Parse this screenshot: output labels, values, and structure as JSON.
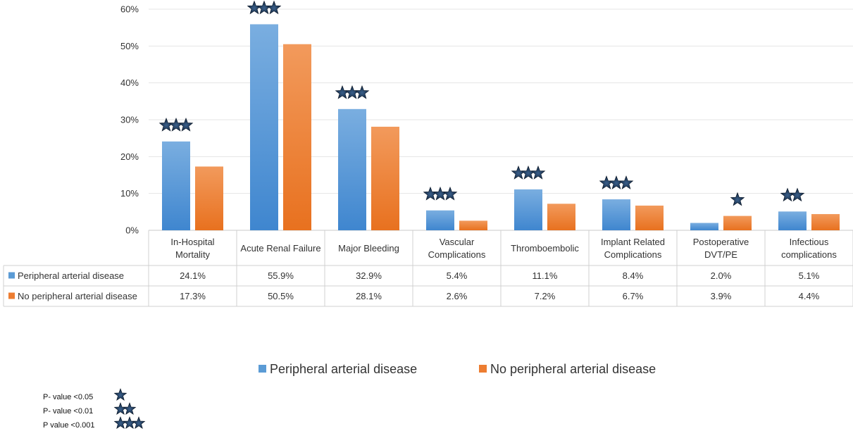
{
  "chart_data": {
    "type": "bar",
    "categories": [
      [
        "In-Hospital",
        "Mortality"
      ],
      [
        "Acute Renal Failure"
      ],
      [
        "Major Bleeding"
      ],
      [
        "Vascular",
        "Complications"
      ],
      [
        "Thromboembolic"
      ],
      [
        "Implant Related",
        "Complications"
      ],
      [
        "Postoperative",
        "DVT/PE"
      ],
      [
        "Infectious",
        "complications"
      ]
    ],
    "series": [
      {
        "name": "Peripheral arterial disease",
        "color": "#5B9BD5",
        "values": [
          24.1,
          55.9,
          32.9,
          5.4,
          11.1,
          8.4,
          2.0,
          5.1
        ],
        "labels": [
          "24.1%",
          "55.9%",
          "32.9%",
          "5.4%",
          "11.1%",
          "8.4%",
          "2.0%",
          "5.1%"
        ]
      },
      {
        "name": "No peripheral arterial disease",
        "color": "#ED7D31",
        "values": [
          17.3,
          50.5,
          28.1,
          2.6,
          7.2,
          6.7,
          3.9,
          4.4
        ],
        "labels": [
          "17.3%",
          "50.5%",
          "28.1%",
          "2.6%",
          "7.2%",
          "6.7%",
          "3.9%",
          "4.4%"
        ]
      }
    ],
    "ylim": [
      0,
      60
    ],
    "yticks": [
      "0%",
      "10%",
      "20%",
      "30%",
      "40%",
      "50%",
      "60%"
    ],
    "grid": true,
    "legend_position": "bottom",
    "significance": [
      {
        "series": 0,
        "stars": 3
      },
      {
        "series": 0,
        "stars": 3
      },
      {
        "series": 0,
        "stars": 3
      },
      {
        "series": 0,
        "stars": 3
      },
      {
        "series": 0,
        "stars": 3
      },
      {
        "series": 0,
        "stars": 3
      },
      {
        "series": 1,
        "stars": 1
      },
      {
        "series": 0,
        "stars": 2
      }
    ],
    "significance_key": [
      {
        "label": "P- value <0.05",
        "stars": 1
      },
      {
        "label": "P- value <0.01",
        "stars": 2
      },
      {
        "label": "P value <0.001",
        "stars": 3
      }
    ]
  }
}
